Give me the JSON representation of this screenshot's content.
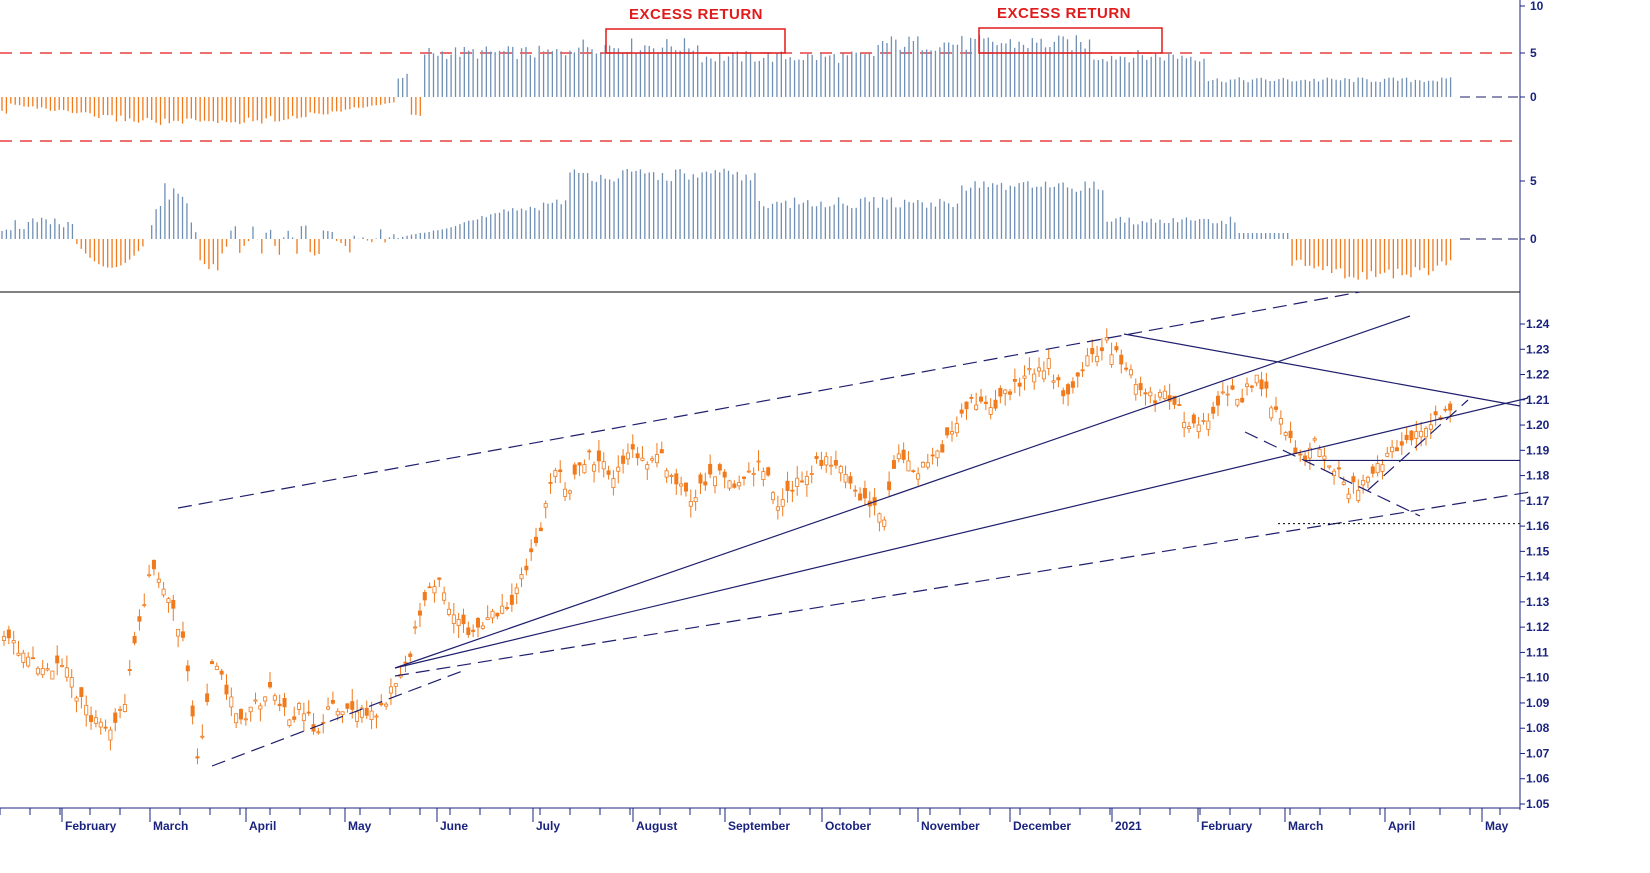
{
  "annotations": {
    "excess_return_1": "EXCESS RETURN",
    "excess_return_2": "EXCESS RETURN"
  },
  "colors": {
    "positive_bar": "#6f8fb4",
    "negative_bar": "#f07a1c",
    "candle": "#f07a1c",
    "trendline": "#1f1f6e",
    "threshold": "#e01b1b",
    "axis": "#1a237e"
  },
  "chart_data": [
    {
      "type": "bar",
      "panel": "top-oscillator",
      "y_ticks": [
        "10",
        "5",
        "0"
      ],
      "threshold_lines": [
        5,
        -5
      ],
      "zero_line": 0,
      "segments": [
        {
          "from": 0,
          "to": 0.27,
          "level": -1.8,
          "sign": "negative"
        },
        {
          "from": 0.27,
          "to": 0.28,
          "level": 2.4,
          "sign": "positive"
        },
        {
          "from": 0.28,
          "to": 0.29,
          "level": -2.0,
          "sign": "negative"
        },
        {
          "from": 0.29,
          "to": 0.39,
          "level": 5.2,
          "sign": "positive"
        },
        {
          "from": 0.39,
          "to": 0.48,
          "level": 6.0,
          "sign": "positive"
        },
        {
          "from": 0.48,
          "to": 0.6,
          "level": 4.7,
          "sign": "positive"
        },
        {
          "from": 0.6,
          "to": 0.75,
          "level": 6.3,
          "sign": "positive"
        },
        {
          "from": 0.75,
          "to": 0.83,
          "level": 4.8,
          "sign": "positive"
        },
        {
          "from": 0.83,
          "to": 0.96,
          "level": 2.0,
          "sign": "positive"
        }
      ]
    },
    {
      "type": "bar",
      "panel": "middle-oscillator",
      "y_ticks": [
        "5",
        "0"
      ],
      "zero_line": 0
    },
    {
      "type": "line",
      "panel": "price",
      "series": [
        {
          "name": "",
          "values": [
            1.115,
            1.112,
            1.105,
            1.102,
            1.108,
            1.092,
            1.083,
            1.08,
            1.088,
            1.12,
            1.145,
            1.13,
            1.118,
            1.068,
            1.105,
            1.095,
            1.082,
            1.09,
            1.095,
            1.085,
            1.088,
            1.078,
            1.092,
            1.085,
            1.09,
            1.082,
            1.098,
            1.105,
            1.13,
            1.138,
            1.128,
            1.12,
            1.118,
            1.125,
            1.13,
            1.145,
            1.16,
            1.182,
            1.175,
            1.188,
            1.185,
            1.18,
            1.192,
            1.185,
            1.188,
            1.18,
            1.17,
            1.178,
            1.18,
            1.175,
            1.184,
            1.182,
            1.168,
            1.175,
            1.18,
            1.188,
            1.183,
            1.174,
            1.17,
            1.162,
            1.188,
            1.182,
            1.186,
            1.192,
            1.2,
            1.212,
            1.205,
            1.213,
            1.215,
            1.222,
            1.225,
            1.212,
            1.219,
            1.228,
            1.233,
            1.225,
            1.215,
            1.21,
            1.213,
            1.205,
            1.198,
            1.206,
            1.214,
            1.21,
            1.22,
            1.208,
            1.196,
            1.188,
            1.192,
            1.185,
            1.176,
            1.174,
            1.182,
            1.188,
            1.195,
            1.2,
            1.204,
            1.203
          ]
        }
      ],
      "y_ticks": [
        "1.24",
        "1.23",
        "1.22",
        "1.21",
        "1.20",
        "1.19",
        "1.18",
        "1.17",
        "1.16",
        "1.15",
        "1.14",
        "1.13",
        "1.12",
        "1.11",
        "1.10",
        "1.09",
        "1.08",
        "1.07",
        "1.06",
        "1.05"
      ],
      "y_range": [
        1.05,
        1.24
      ],
      "x_tick_labels": [
        "February",
        "March",
        "April",
        "May",
        "June",
        "July",
        "August",
        "September",
        "October",
        "November",
        "December",
        "2021",
        "February",
        "March",
        "April",
        "May"
      ],
      "support_level": 1.186,
      "dotted_level": 1.161
    }
  ]
}
